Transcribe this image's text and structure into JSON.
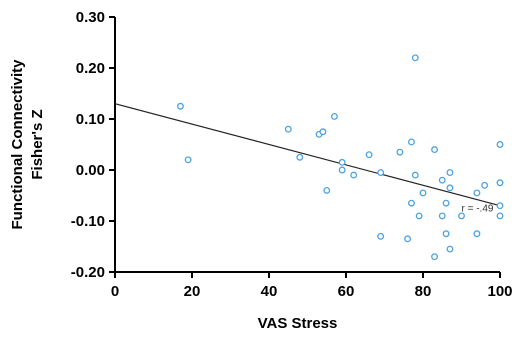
{
  "chart_data": {
    "type": "scatter",
    "title": "",
    "xlabel": "VAS Stress",
    "ylabel_lines": [
      "Functional Connectivity",
      "Fisher's Z"
    ],
    "xlim": [
      0,
      100
    ],
    "ylim": [
      -0.2,
      0.3
    ],
    "xticks": [
      "0",
      "20",
      "40",
      "60",
      "80",
      "100"
    ],
    "xtick_values": [
      0,
      20,
      40,
      60,
      80,
      100
    ],
    "yticks": [
      "-0.20",
      "-0.10",
      "0.00",
      "0.10",
      "0.20",
      "0.30"
    ],
    "ytick_values": [
      -0.2,
      -0.1,
      0.0,
      0.1,
      0.2,
      0.3
    ],
    "grid": false,
    "marker_color": "#4da3e0",
    "line_color": "#222222",
    "points": [
      {
        "x": 17,
        "y": 0.125
      },
      {
        "x": 19,
        "y": 0.02
      },
      {
        "x": 45,
        "y": 0.08
      },
      {
        "x": 48,
        "y": 0.025
      },
      {
        "x": 53,
        "y": 0.07
      },
      {
        "x": 54,
        "y": 0.075
      },
      {
        "x": 55,
        "y": -0.04
      },
      {
        "x": 57,
        "y": 0.105
      },
      {
        "x": 59,
        "y": 0.015
      },
      {
        "x": 59,
        "y": 0.0
      },
      {
        "x": 62,
        "y": -0.01
      },
      {
        "x": 66,
        "y": 0.03
      },
      {
        "x": 69,
        "y": -0.13
      },
      {
        "x": 69,
        "y": -0.005
      },
      {
        "x": 74,
        "y": 0.035
      },
      {
        "x": 76,
        "y": -0.135
      },
      {
        "x": 77,
        "y": 0.055
      },
      {
        "x": 77,
        "y": -0.065
      },
      {
        "x": 78,
        "y": 0.22
      },
      {
        "x": 78,
        "y": -0.01
      },
      {
        "x": 79,
        "y": -0.09
      },
      {
        "x": 80,
        "y": -0.045
      },
      {
        "x": 83,
        "y": 0.04
      },
      {
        "x": 83,
        "y": -0.17
      },
      {
        "x": 85,
        "y": -0.02
      },
      {
        "x": 85,
        "y": -0.09
      },
      {
        "x": 86,
        "y": -0.065
      },
      {
        "x": 86,
        "y": -0.125
      },
      {
        "x": 87,
        "y": -0.005
      },
      {
        "x": 87,
        "y": -0.035
      },
      {
        "x": 87,
        "y": -0.155
      },
      {
        "x": 90,
        "y": -0.09
      },
      {
        "x": 94,
        "y": -0.125
      },
      {
        "x": 94,
        "y": -0.045
      },
      {
        "x": 96,
        "y": -0.03
      },
      {
        "x": 100,
        "y": 0.05
      },
      {
        "x": 100,
        "y": -0.025
      },
      {
        "x": 100,
        "y": -0.07
      },
      {
        "x": 100,
        "y": -0.09
      }
    ],
    "regression": {
      "x1": 0,
      "y1": 0.13,
      "x2": 100,
      "y2": -0.07
    },
    "annotation": {
      "text": "r = -.49",
      "x": 90,
      "y": -0.075
    }
  }
}
